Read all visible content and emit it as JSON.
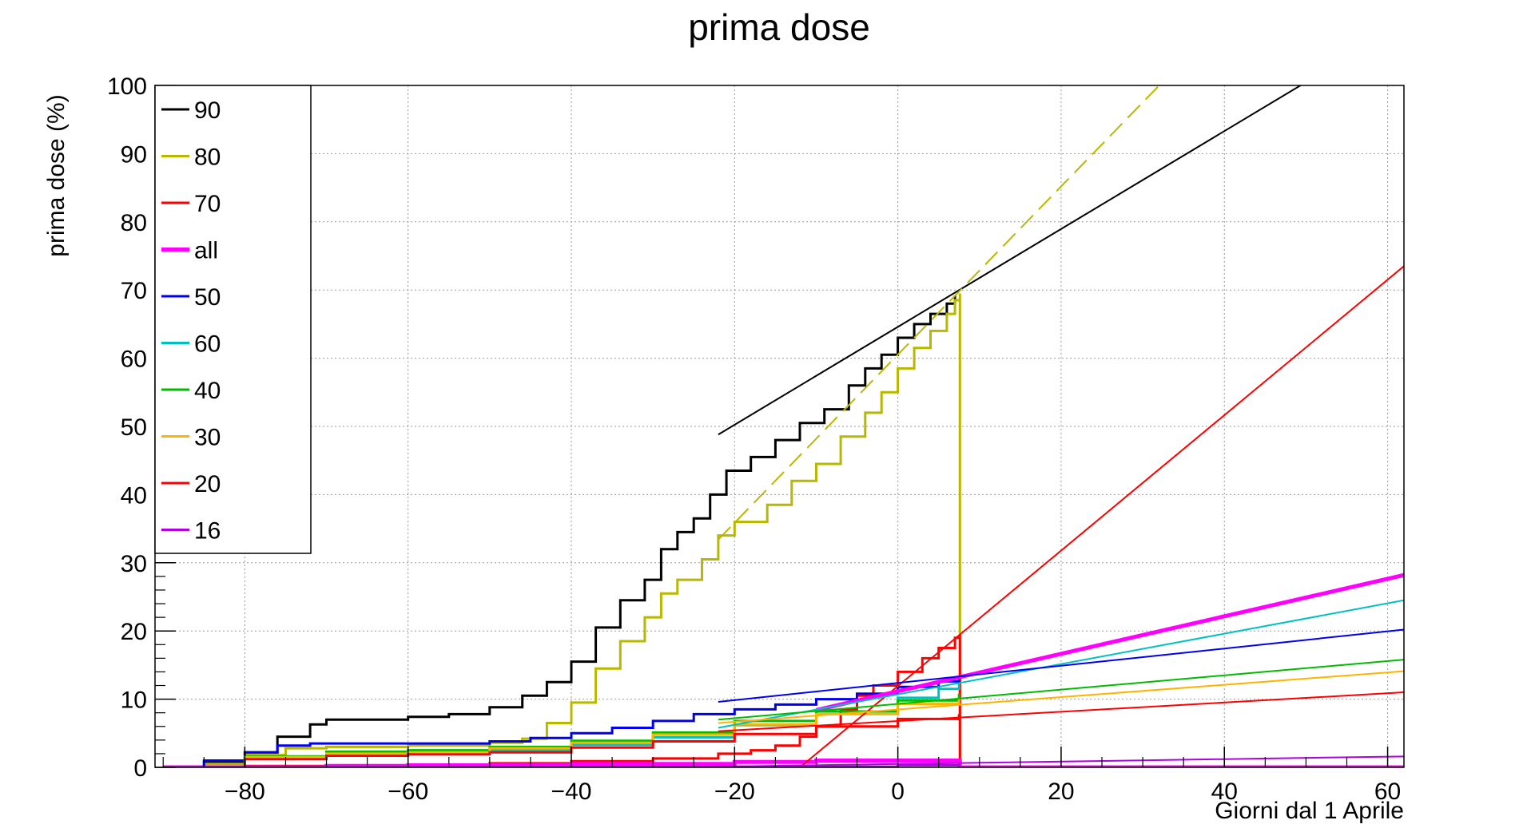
{
  "chart_data": {
    "type": "line",
    "title": "prima dose",
    "xlabel": "Giorni dal 1 Aprile",
    "ylabel": "prima dose (%)",
    "xlim": [
      -91,
      62
    ],
    "ylim": [
      0,
      100
    ],
    "x_ticks": [
      -80,
      -60,
      -40,
      -20,
      0,
      20,
      40,
      60
    ],
    "x_tick_labels": [
      "−80",
      "−60",
      "−40",
      "−20",
      "0",
      "20",
      "40",
      "60"
    ],
    "y_ticks": [
      0,
      10,
      20,
      30,
      40,
      50,
      60,
      70,
      80,
      90,
      100
    ],
    "grid": true,
    "legend_position": "top-left",
    "series": [
      {
        "name": "90",
        "color": "#000000",
        "width": 3,
        "points": [
          [
            -90,
            0
          ],
          [
            -85,
            0.8
          ],
          [
            -80,
            2.2
          ],
          [
            -76,
            4.5
          ],
          [
            -72,
            6.3
          ],
          [
            -70,
            7.0
          ],
          [
            -60,
            7.4
          ],
          [
            -55,
            7.8
          ],
          [
            -50,
            8.8
          ],
          [
            -46,
            10.5
          ],
          [
            -43,
            12.5
          ],
          [
            -40,
            15.5
          ],
          [
            -37,
            20.5
          ],
          [
            -34,
            24.5
          ],
          [
            -31,
            27.5
          ],
          [
            -29,
            32
          ],
          [
            -27,
            34.5
          ],
          [
            -25,
            36.5
          ],
          [
            -23,
            40
          ],
          [
            -21,
            43.5
          ],
          [
            -18,
            45.5
          ],
          [
            -15,
            48
          ],
          [
            -12,
            50.5
          ],
          [
            -9,
            52.5
          ],
          [
            -6,
            56
          ],
          [
            -4,
            58.5
          ],
          [
            -2,
            60.5
          ],
          [
            0,
            63
          ],
          [
            2,
            65
          ],
          [
            4,
            66.5
          ],
          [
            6,
            68
          ],
          [
            7,
            69.2
          ]
        ]
      },
      {
        "name": "80",
        "color": "#b8b800",
        "width": 3,
        "points": [
          [
            -90,
            0
          ],
          [
            -85,
            0.5
          ],
          [
            -80,
            1.8
          ],
          [
            -75,
            2.8
          ],
          [
            -70,
            3.0
          ],
          [
            -60,
            3.2
          ],
          [
            -50,
            3.6
          ],
          [
            -46,
            4.2
          ],
          [
            -43,
            6.5
          ],
          [
            -40,
            9.5
          ],
          [
            -37,
            14.5
          ],
          [
            -34,
            18.5
          ],
          [
            -31,
            22
          ],
          [
            -29,
            25.5
          ],
          [
            -27,
            27.5
          ],
          [
            -24,
            30.5
          ],
          [
            -22,
            34
          ],
          [
            -20,
            36
          ],
          [
            -16,
            38.5
          ],
          [
            -13,
            42
          ],
          [
            -10,
            44.5
          ],
          [
            -7,
            48.5
          ],
          [
            -4,
            52
          ],
          [
            -2,
            55
          ],
          [
            0,
            58.5
          ],
          [
            2,
            61.5
          ],
          [
            4,
            64
          ],
          [
            6,
            66.5
          ],
          [
            7,
            68.5
          ],
          [
            7.6,
            69.5
          ],
          [
            7.6,
            0
          ]
        ]
      },
      {
        "name": "70",
        "color": "#ff0000",
        "width": 3,
        "points": [
          [
            -90,
            0
          ],
          [
            -80,
            0.2
          ],
          [
            -60,
            0.4
          ],
          [
            -50,
            0.6
          ],
          [
            -40,
            0.9
          ],
          [
            -30,
            1.3
          ],
          [
            -22,
            2.0
          ],
          [
            -18,
            2.5
          ],
          [
            -15,
            3.2
          ],
          [
            -12,
            4.5
          ],
          [
            -10,
            6
          ],
          [
            -7,
            8.5
          ],
          [
            -5,
            10.5
          ],
          [
            -3,
            12
          ],
          [
            0,
            14
          ],
          [
            3,
            16
          ],
          [
            5,
            17.5
          ],
          [
            7,
            19
          ],
          [
            7.6,
            19.5
          ],
          [
            7.6,
            0
          ]
        ]
      },
      {
        "name": "all",
        "color": "#ff00ff",
        "width": 5,
        "points": [
          [
            -90,
            0
          ],
          [
            -70,
            0.2
          ],
          [
            -60,
            0.3
          ],
          [
            -40,
            0.5
          ],
          [
            -20,
            0.8
          ],
          [
            -10,
            1
          ],
          [
            7.6,
            1.2
          ],
          [
            7.6,
            0
          ],
          [
            62,
            0
          ]
        ]
      },
      {
        "name": "50",
        "color": "#0000ee",
        "width": 3,
        "points": [
          [
            -90,
            0
          ],
          [
            -85,
            1.0
          ],
          [
            -80,
            2.2
          ],
          [
            -76,
            3.2
          ],
          [
            -72,
            3.5
          ],
          [
            -60,
            3.5
          ],
          [
            -50,
            3.8
          ],
          [
            -45,
            4.3
          ],
          [
            -40,
            5.0
          ],
          [
            -35,
            5.8
          ],
          [
            -30,
            6.8
          ],
          [
            -25,
            7.8
          ],
          [
            -20,
            8.5
          ],
          [
            -15,
            9.2
          ],
          [
            -10,
            10
          ],
          [
            -5,
            10.8
          ],
          [
            0,
            11.8
          ],
          [
            5,
            12.6
          ],
          [
            7.5,
            13.2
          ]
        ]
      },
      {
        "name": "60",
        "color": "#00c0c0",
        "width": 3,
        "points": [
          [
            -90,
            0
          ],
          [
            -80,
            1.4
          ],
          [
            -70,
            1.9
          ],
          [
            -60,
            2.2
          ],
          [
            -50,
            2.5
          ],
          [
            -40,
            3.3
          ],
          [
            -30,
            4.4
          ],
          [
            -20,
            6.2
          ],
          [
            -10,
            8.2
          ],
          [
            0,
            10.2
          ],
          [
            5,
            11.5
          ],
          [
            7.5,
            12.4
          ]
        ]
      },
      {
        "name": "40",
        "color": "#00bb00",
        "width": 3,
        "points": [
          [
            -90,
            0
          ],
          [
            -80,
            1.6
          ],
          [
            -70,
            2.3
          ],
          [
            -60,
            2.5
          ],
          [
            -50,
            3.0
          ],
          [
            -40,
            3.9
          ],
          [
            -30,
            5.1
          ],
          [
            -20,
            6.8
          ],
          [
            -10,
            8.2
          ],
          [
            0,
            9.8
          ],
          [
            7.5,
            10.8
          ]
        ]
      },
      {
        "name": "30",
        "color": "#ffb300",
        "width": 3,
        "points": [
          [
            -90,
            0
          ],
          [
            -80,
            1.5
          ],
          [
            -70,
            2.0
          ],
          [
            -60,
            2.2
          ],
          [
            -50,
            2.8
          ],
          [
            -40,
            3.6
          ],
          [
            -30,
            4.8
          ],
          [
            -20,
            6.3
          ],
          [
            -10,
            7.8
          ],
          [
            0,
            9.3
          ],
          [
            7.5,
            10.2
          ]
        ]
      },
      {
        "name": "20",
        "color": "#ff0000",
        "width": 3,
        "points": [
          [
            -90,
            0
          ],
          [
            -80,
            1.2
          ],
          [
            -70,
            1.7
          ],
          [
            -60,
            1.9
          ],
          [
            -50,
            2.2
          ],
          [
            -40,
            2.9
          ],
          [
            -30,
            3.8
          ],
          [
            -20,
            4.9
          ],
          [
            -10,
            6.0
          ],
          [
            0,
            7.1
          ],
          [
            7.5,
            7.8
          ]
        ]
      },
      {
        "name": "16",
        "color": "#b000e0",
        "width": 3,
        "points": [
          [
            -90,
            0
          ],
          [
            -40,
            0.05
          ],
          [
            -20,
            0.1
          ],
          [
            0,
            0.3
          ],
          [
            7.5,
            0.5
          ]
        ]
      }
    ],
    "fit_lines": [
      {
        "series": "90",
        "color": "#000000",
        "dashed": false,
        "width": 2,
        "x": [
          -22,
          51
        ],
        "y": [
          48.8,
          101.2
        ]
      },
      {
        "series": "80",
        "color": "#b8b800",
        "dashed": true,
        "width": 2,
        "x": [
          -22,
          32.5
        ],
        "y": [
          33.4,
          100.6
        ]
      },
      {
        "series": "70",
        "color": "#ff0000",
        "dashed": false,
        "width": 2,
        "x": [
          -12,
          62
        ],
        "y": [
          0,
          73.5
        ]
      },
      {
        "series": "all",
        "color": "#ff00ff",
        "dashed": false,
        "width": 5,
        "x": [
          -10,
          62
        ],
        "y": [
          8.4,
          28.2
        ]
      },
      {
        "series": "60",
        "color": "#00c0c0",
        "dashed": false,
        "width": 2,
        "x": [
          -22,
          62
        ],
        "y": [
          5.8,
          24.5
        ]
      },
      {
        "series": "50",
        "color": "#0000ee",
        "dashed": false,
        "width": 2,
        "x": [
          -22,
          62
        ],
        "y": [
          9.6,
          20.2
        ]
      },
      {
        "series": "40",
        "color": "#00bb00",
        "dashed": false,
        "width": 2,
        "x": [
          -22,
          62
        ],
        "y": [
          7.0,
          15.8
        ]
      },
      {
        "series": "30",
        "color": "#ffb300",
        "dashed": false,
        "width": 2,
        "x": [
          -22,
          62
        ],
        "y": [
          6.5,
          14.1
        ]
      },
      {
        "series": "20",
        "color": "#ff0000",
        "dashed": false,
        "width": 2,
        "x": [
          -22,
          62
        ],
        "y": [
          5.3,
          11.0
        ]
      },
      {
        "series": "16",
        "color": "#b000e0",
        "dashed": false,
        "width": 2,
        "x": [
          -22,
          62
        ],
        "y": [
          0.1,
          1.6
        ]
      }
    ]
  }
}
